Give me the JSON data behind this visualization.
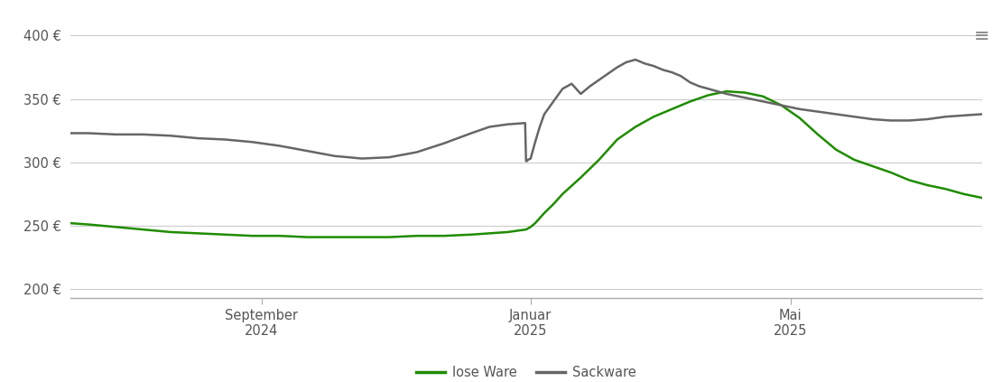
{
  "background_color": "#ffffff",
  "y_ticks": [
    200,
    250,
    300,
    350,
    400
  ],
  "y_tick_labels": [
    "200 €",
    "250 €",
    "300 €",
    "350 €",
    "400 €"
  ],
  "ylim": [
    193,
    413
  ],
  "x_tick_labels": [
    "September\n2024",
    "Januar\n2025",
    "Mai\n2025"
  ],
  "x_tick_pos": [
    0.21,
    0.505,
    0.79
  ],
  "legend_labels": [
    "lose Ware",
    "Sackware"
  ],
  "line_colors": [
    "#1f8c00",
    "#666666"
  ],
  "grid_color": "#cccccc",
  "lose_ware_x": [
    0.0,
    0.02,
    0.05,
    0.08,
    0.11,
    0.14,
    0.17,
    0.2,
    0.23,
    0.26,
    0.29,
    0.32,
    0.35,
    0.38,
    0.41,
    0.44,
    0.46,
    0.48,
    0.5,
    0.505,
    0.51,
    0.515,
    0.52,
    0.53,
    0.54,
    0.56,
    0.58,
    0.6,
    0.62,
    0.64,
    0.66,
    0.68,
    0.7,
    0.72,
    0.74,
    0.76,
    0.78,
    0.8,
    0.82,
    0.84,
    0.86,
    0.88,
    0.9,
    0.92,
    0.94,
    0.96,
    0.98,
    1.0
  ],
  "lose_ware_y": [
    252,
    251,
    249,
    247,
    245,
    244,
    243,
    242,
    242,
    241,
    241,
    241,
    241,
    242,
    242,
    243,
    244,
    245,
    247,
    249,
    252,
    256,
    260,
    267,
    275,
    288,
    302,
    318,
    328,
    336,
    342,
    348,
    353,
    356,
    355,
    352,
    345,
    335,
    322,
    310,
    302,
    297,
    292,
    286,
    282,
    279,
    275,
    272
  ],
  "sackware_x": [
    0.0,
    0.02,
    0.05,
    0.08,
    0.11,
    0.14,
    0.17,
    0.2,
    0.23,
    0.26,
    0.29,
    0.32,
    0.35,
    0.38,
    0.41,
    0.44,
    0.46,
    0.48,
    0.499,
    0.5,
    0.501,
    0.502,
    0.505,
    0.51,
    0.515,
    0.52,
    0.53,
    0.54,
    0.55,
    0.56,
    0.57,
    0.58,
    0.59,
    0.6,
    0.61,
    0.62,
    0.63,
    0.64,
    0.65,
    0.66,
    0.67,
    0.68,
    0.69,
    0.7,
    0.72,
    0.74,
    0.76,
    0.78,
    0.8,
    0.82,
    0.84,
    0.86,
    0.88,
    0.9,
    0.92,
    0.94,
    0.96,
    0.98,
    1.0
  ],
  "sackware_y": [
    323,
    323,
    322,
    322,
    321,
    319,
    318,
    316,
    313,
    309,
    305,
    303,
    304,
    308,
    315,
    323,
    328,
    330,
    331,
    301,
    301,
    302,
    303,
    316,
    328,
    338,
    348,
    358,
    362,
    354,
    360,
    365,
    370,
    375,
    379,
    381,
    378,
    376,
    373,
    371,
    368,
    363,
    360,
    358,
    354,
    351,
    348,
    345,
    342,
    340,
    338,
    336,
    334,
    333,
    333,
    334,
    336,
    337,
    338
  ]
}
